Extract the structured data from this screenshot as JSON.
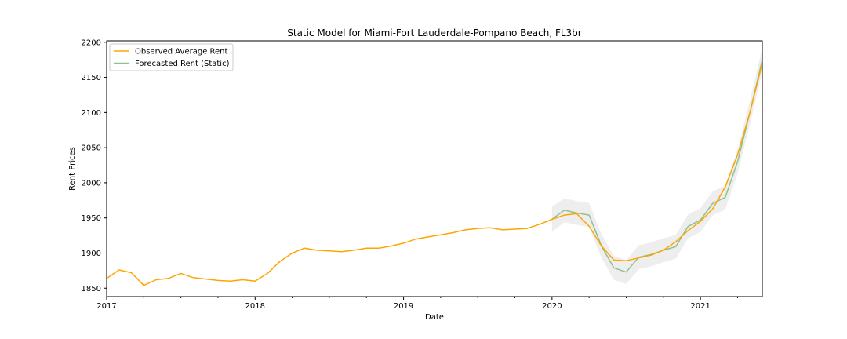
{
  "chart_data": {
    "type": "line",
    "title": "Static Model for Miami-Fort Lauderdale-Pompano Beach, FL3br",
    "xlabel": "Date",
    "ylabel": "Rent Prices",
    "xlim": [
      "2017-01",
      "2021-06"
    ],
    "ylim": [
      1838,
      2202
    ],
    "x_ticks": [
      "2017",
      "2018",
      "2019",
      "2020",
      "2021"
    ],
    "y_ticks": [
      1850,
      1900,
      1950,
      2000,
      2050,
      2100,
      2150,
      2200
    ],
    "legend_position": "top-left",
    "grid": false,
    "series": [
      {
        "name": "Observed Average Rent",
        "color": "#FFA500",
        "x": [
          "2017-01",
          "2017-02",
          "2017-03",
          "2017-04",
          "2017-05",
          "2017-06",
          "2017-07",
          "2017-08",
          "2017-09",
          "2017-10",
          "2017-11",
          "2017-12",
          "2018-01",
          "2018-02",
          "2018-03",
          "2018-04",
          "2018-05",
          "2018-06",
          "2018-07",
          "2018-08",
          "2018-09",
          "2018-10",
          "2018-11",
          "2018-12",
          "2019-01",
          "2019-02",
          "2019-03",
          "2019-04",
          "2019-05",
          "2019-06",
          "2019-07",
          "2019-08",
          "2019-09",
          "2019-10",
          "2019-11",
          "2019-12",
          "2020-01",
          "2020-02",
          "2020-03",
          "2020-04",
          "2020-05",
          "2020-06",
          "2020-07",
          "2020-08",
          "2020-09",
          "2020-10",
          "2020-11",
          "2020-12",
          "2021-01",
          "2021-02",
          "2021-03",
          "2021-04",
          "2021-05",
          "2021-06"
        ],
        "values": [
          1864,
          1876,
          1872,
          1854,
          1862,
          1864,
          1871,
          1865,
          1863,
          1861,
          1860,
          1862,
          1860,
          1871,
          1888,
          1900,
          1907,
          1904,
          1903,
          1902,
          1904,
          1907,
          1907,
          1910,
          1914,
          1920,
          1923,
          1926,
          1929,
          1933,
          1935,
          1936,
          1933,
          1934,
          1935,
          1941,
          1948,
          1954,
          1956,
          1938,
          1910,
          1890,
          1889,
          1893,
          1897,
          1904,
          1916,
          1932,
          1945,
          1963,
          1994,
          2040,
          2100,
          2170
        ]
      },
      {
        "name": "Forecasted Rent (Static)",
        "color": "#8FC18F",
        "x": [
          "2020-01",
          "2020-02",
          "2020-03",
          "2020-04",
          "2020-05",
          "2020-06",
          "2020-07",
          "2020-08",
          "2020-09",
          "2020-10",
          "2020-11",
          "2020-12",
          "2021-01",
          "2021-02",
          "2021-03",
          "2021-04",
          "2021-05",
          "2021-06"
        ],
        "values": [
          1948,
          1961,
          1957,
          1954,
          1910,
          1879,
          1873,
          1894,
          1898,
          1904,
          1909,
          1938,
          1947,
          1971,
          1979,
          2030,
          2100,
          2175
        ],
        "ci_lower": [
          1930,
          1944,
          1940,
          1937,
          1893,
          1862,
          1856,
          1877,
          1881,
          1887,
          1892,
          1921,
          1930,
          1954,
          1962,
          2013,
          2083,
          2158
        ],
        "ci_upper": [
          1966,
          1978,
          1974,
          1971,
          1927,
          1896,
          1890,
          1911,
          1915,
          1921,
          1926,
          1955,
          1964,
          1988,
          1996,
          2047,
          2117,
          2192
        ],
        "ci_color": "#d9d9d9"
      }
    ]
  }
}
